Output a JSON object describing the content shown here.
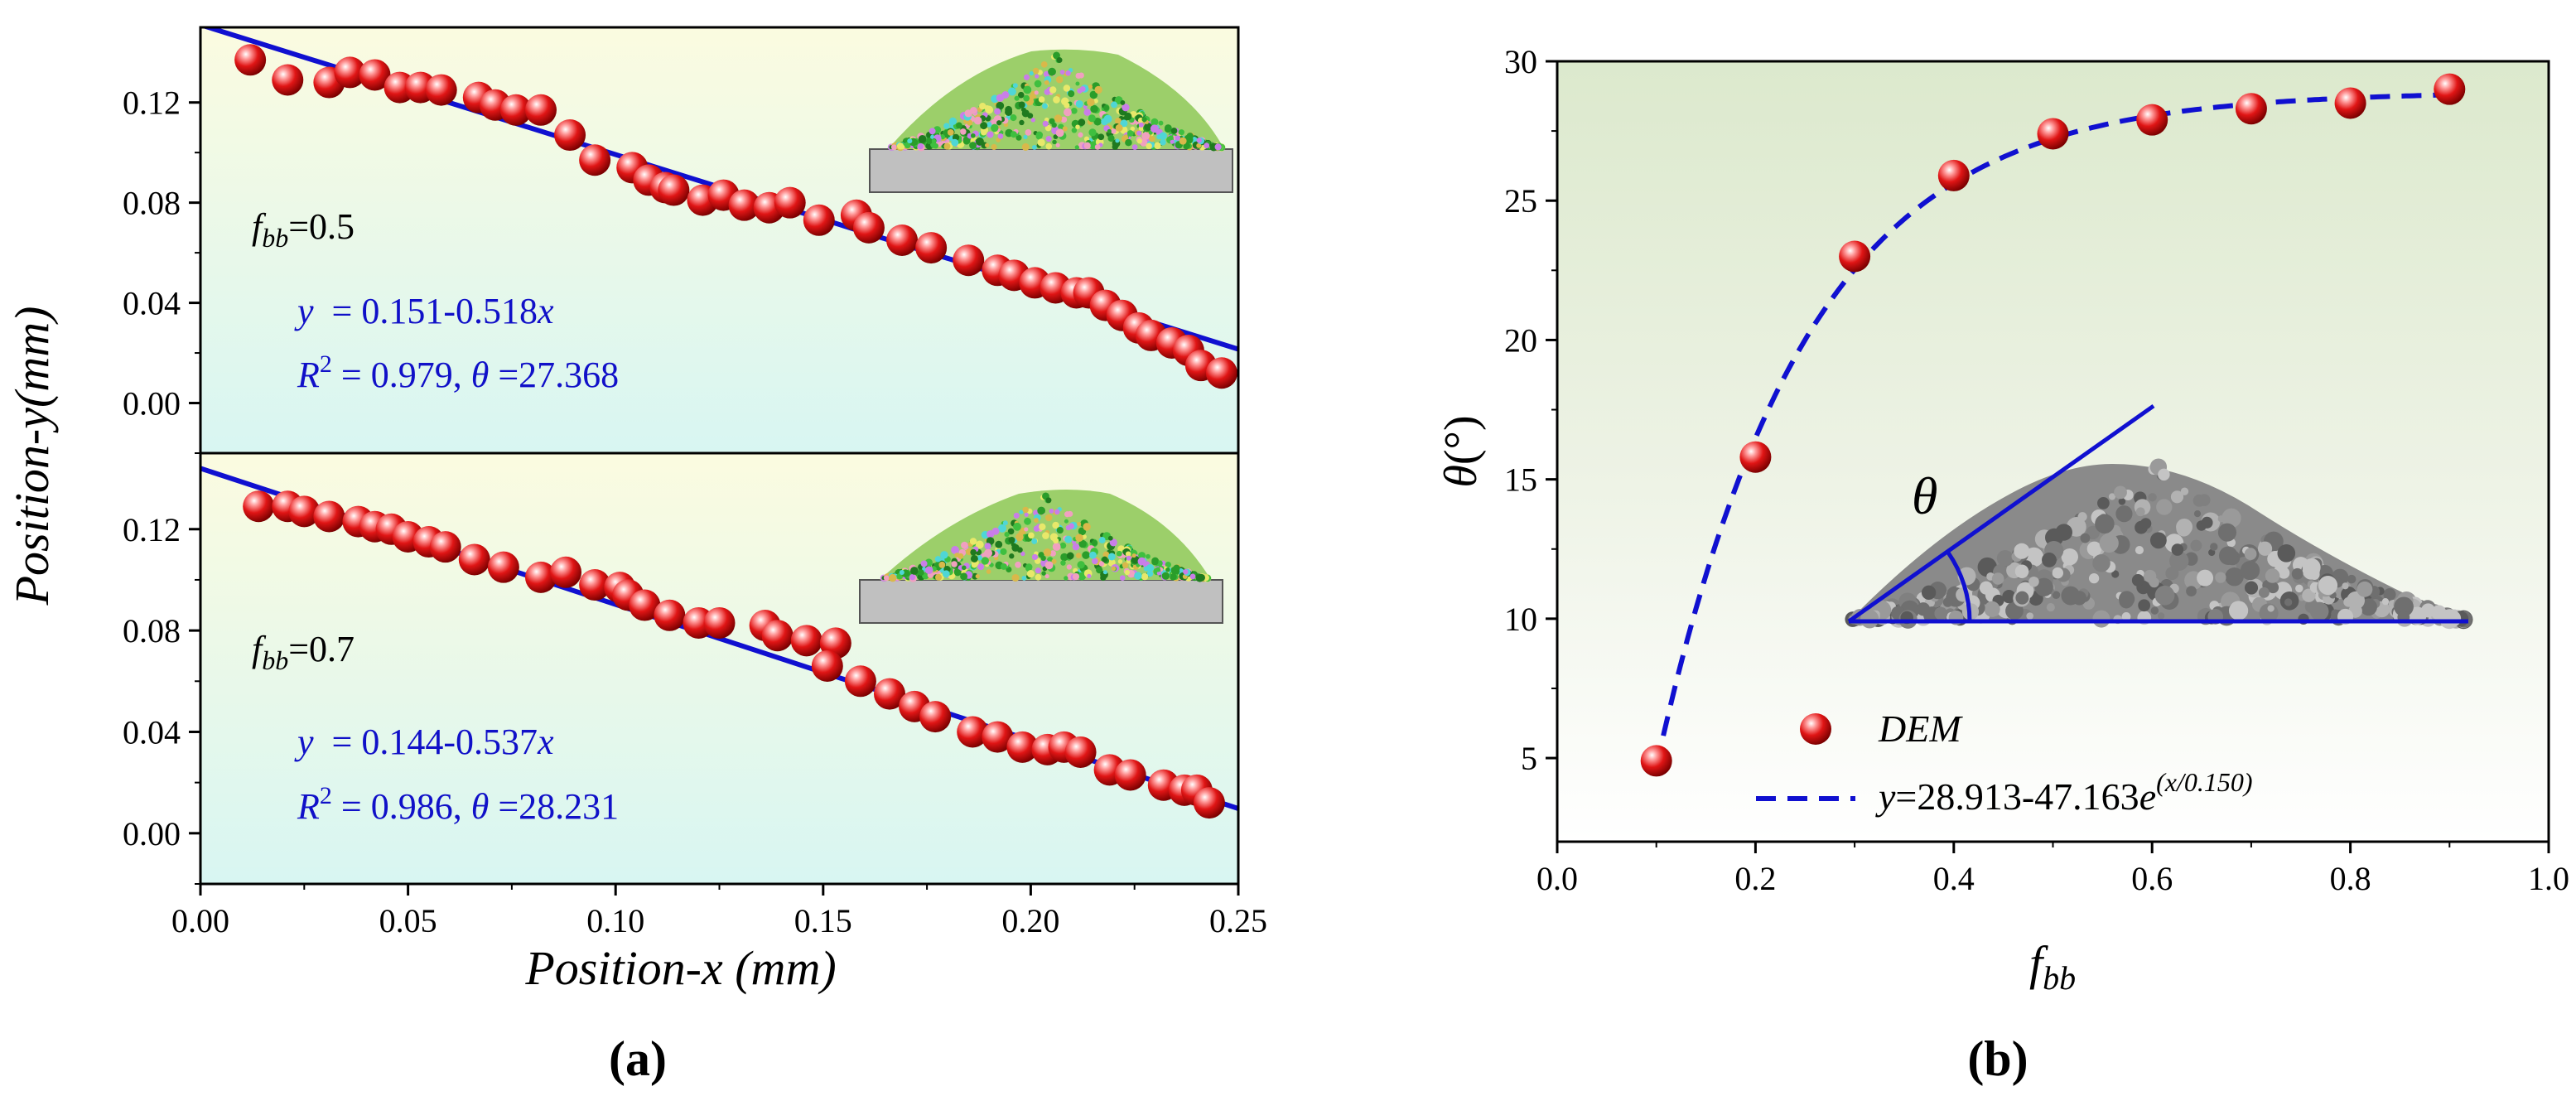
{
  "figure": {
    "panel_a_label": "(a)",
    "panel_b_label": "(b)"
  },
  "colors": {
    "fit_line": "#1010d0",
    "dem_marker": "#e01515",
    "equation_text": "#1010c8",
    "axis": "#000000",
    "substrate": "#c0c0c0"
  },
  "icons": {
    "pile_a1": "particle-pile-icon",
    "pile_a2": "particle-pile-icon",
    "pile_b": "gravel-pile-icon"
  },
  "chart_data": [
    {
      "id": "a-top",
      "type": "scatter",
      "xlim": [
        0,
        0.25
      ],
      "ylim": [
        -0.02,
        0.15
      ],
      "yticks": [
        "0.00",
        "0.04",
        "0.08",
        "0.12"
      ],
      "ytick_values": [
        0.0,
        0.04,
        0.08,
        0.12
      ],
      "ylabel": "Position-y(mm)",
      "label_f": "f",
      "label_sub": "bb",
      "label_val": "=0.5",
      "eq_y": "y",
      "eq_rest": "  = 0.151-0.518",
      "eq_x": "x",
      "r2_r": "R",
      "r2_sup": "2",
      "r2_mid": " = 0.979, ",
      "r2_theta": "θ",
      "r2_val": " =27.368",
      "fit": {
        "intercept": 0.151,
        "slope": -0.518
      },
      "points": [
        [
          0.012,
          0.137
        ],
        [
          0.021,
          0.129
        ],
        [
          0.031,
          0.128
        ],
        [
          0.036,
          0.132
        ],
        [
          0.042,
          0.131
        ],
        [
          0.048,
          0.126
        ],
        [
          0.053,
          0.126
        ],
        [
          0.058,
          0.125
        ],
        [
          0.067,
          0.122
        ],
        [
          0.071,
          0.119
        ],
        [
          0.076,
          0.117
        ],
        [
          0.082,
          0.117
        ],
        [
          0.089,
          0.107
        ],
        [
          0.095,
          0.097
        ],
        [
          0.104,
          0.094
        ],
        [
          0.108,
          0.089
        ],
        [
          0.112,
          0.086
        ],
        [
          0.114,
          0.085
        ],
        [
          0.121,
          0.081
        ],
        [
          0.126,
          0.083
        ],
        [
          0.131,
          0.079
        ],
        [
          0.137,
          0.078
        ],
        [
          0.142,
          0.08
        ],
        [
          0.149,
          0.073
        ],
        [
          0.158,
          0.075
        ],
        [
          0.161,
          0.07
        ],
        [
          0.169,
          0.065
        ],
        [
          0.176,
          0.062
        ],
        [
          0.185,
          0.057
        ],
        [
          0.192,
          0.053
        ],
        [
          0.196,
          0.051
        ],
        [
          0.201,
          0.048
        ],
        [
          0.206,
          0.046
        ],
        [
          0.211,
          0.044
        ],
        [
          0.214,
          0.044
        ],
        [
          0.218,
          0.039
        ],
        [
          0.222,
          0.035
        ],
        [
          0.226,
          0.03
        ],
        [
          0.229,
          0.027
        ],
        [
          0.234,
          0.024
        ],
        [
          0.238,
          0.021
        ],
        [
          0.241,
          0.015
        ],
        [
          0.246,
          0.012
        ]
      ]
    },
    {
      "id": "a-bottom",
      "type": "scatter",
      "xlim": [
        0,
        0.25
      ],
      "ylim": [
        -0.02,
        0.15
      ],
      "yticks": [
        "0.00",
        "0.04",
        "0.08",
        "0.12"
      ],
      "ytick_values": [
        0.0,
        0.04,
        0.08,
        0.12
      ],
      "xticks": [
        "0.00",
        "0.05",
        "0.10",
        "0.15",
        "0.20",
        "0.25"
      ],
      "xtick_values": [
        0.0,
        0.05,
        0.1,
        0.15,
        0.2,
        0.25
      ],
      "xlabel": "Position-x (mm)",
      "label_f": "f",
      "label_sub": "bb",
      "label_val": "=0.7",
      "eq_y": "y",
      "eq_rest": "  = 0.144-0.537",
      "eq_x": "x",
      "r2_r": "R",
      "r2_sup": "2",
      "r2_mid": " = 0.986, ",
      "r2_theta": "θ",
      "r2_val": " =28.231",
      "fit": {
        "intercept": 0.144,
        "slope": -0.537
      },
      "points": [
        [
          0.014,
          0.129
        ],
        [
          0.021,
          0.129
        ],
        [
          0.025,
          0.127
        ],
        [
          0.031,
          0.125
        ],
        [
          0.038,
          0.123
        ],
        [
          0.042,
          0.121
        ],
        [
          0.046,
          0.12
        ],
        [
          0.05,
          0.117
        ],
        [
          0.055,
          0.115
        ],
        [
          0.059,
          0.113
        ],
        [
          0.066,
          0.108
        ],
        [
          0.073,
          0.105
        ],
        [
          0.082,
          0.101
        ],
        [
          0.088,
          0.103
        ],
        [
          0.095,
          0.098
        ],
        [
          0.101,
          0.097
        ],
        [
          0.103,
          0.094
        ],
        [
          0.107,
          0.09
        ],
        [
          0.113,
          0.086
        ],
        [
          0.12,
          0.083
        ],
        [
          0.125,
          0.083
        ],
        [
          0.136,
          0.082
        ],
        [
          0.139,
          0.078
        ],
        [
          0.146,
          0.076
        ],
        [
          0.153,
          0.075
        ],
        [
          0.151,
          0.066
        ],
        [
          0.159,
          0.06
        ],
        [
          0.166,
          0.055
        ],
        [
          0.172,
          0.05
        ],
        [
          0.177,
          0.046
        ],
        [
          0.186,
          0.04
        ],
        [
          0.192,
          0.038
        ],
        [
          0.198,
          0.034
        ],
        [
          0.204,
          0.033
        ],
        [
          0.208,
          0.034
        ],
        [
          0.212,
          0.032
        ],
        [
          0.219,
          0.025
        ],
        [
          0.224,
          0.023
        ],
        [
          0.232,
          0.019
        ],
        [
          0.237,
          0.017
        ],
        [
          0.24,
          0.017
        ],
        [
          0.243,
          0.012
        ]
      ]
    },
    {
      "id": "b",
      "type": "scatter",
      "xlim": [
        0,
        1.0
      ],
      "ylim": [
        2,
        30
      ],
      "xticks": [
        "0.0",
        "0.2",
        "0.4",
        "0.6",
        "0.8",
        "1.0"
      ],
      "xtick_values": [
        0.0,
        0.2,
        0.4,
        0.6,
        0.8,
        1.0
      ],
      "yticks": [
        "5",
        "10",
        "15",
        "20",
        "25",
        "30"
      ],
      "ytick_values": [
        5,
        10,
        15,
        20,
        25,
        30
      ],
      "xlabel_f": "f",
      "xlabel_sub": "bb",
      "ylabel_theta": "θ",
      "ylabel_unit": "(°)",
      "pile_theta": "θ",
      "legend_dem": "DEM",
      "fit_label_y": "y",
      "fit_label_main": "=28.913-47.163",
      "fit_label_e": "e",
      "fit_label_exp": "(x/0.150)",
      "fit": {
        "a": 28.913,
        "b": 47.163,
        "t": 0.15
      },
      "points": [
        [
          0.1,
          4.9
        ],
        [
          0.2,
          15.8
        ],
        [
          0.3,
          23.0
        ],
        [
          0.4,
          25.9
        ],
        [
          0.5,
          27.4
        ],
        [
          0.6,
          27.9
        ],
        [
          0.7,
          28.3
        ],
        [
          0.8,
          28.5
        ],
        [
          0.9,
          29.0
        ]
      ]
    }
  ]
}
